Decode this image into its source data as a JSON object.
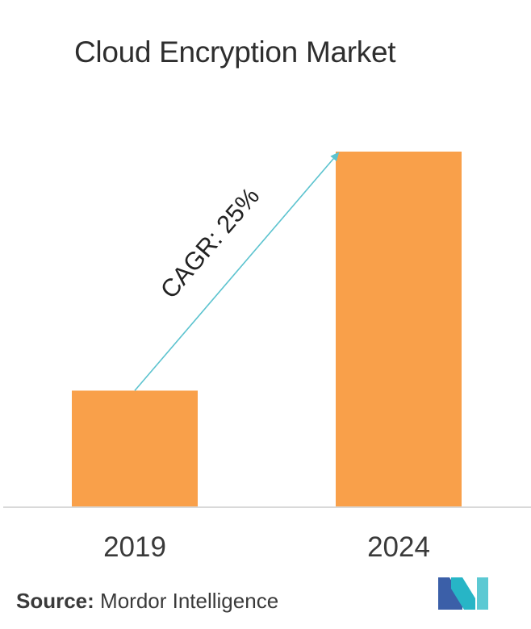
{
  "chart_data": {
    "type": "bar",
    "title": "Cloud Encryption Market",
    "categories": [
      "2019",
      "2024"
    ],
    "values": [
      1.0,
      3.05
    ],
    "ylim": [
      0,
      3.05
    ],
    "grid": false,
    "annotation": "CAGR: 25%"
  },
  "colors": {
    "bar": "#F9A04A",
    "arrow": "#5CC3CF",
    "baseline": "#D9D9D9"
  },
  "footer": {
    "source_label": "Source:",
    "source_text": " Mordor Intelligence"
  },
  "logo": {
    "icon": "mordor-intelligence-logo-icon"
  }
}
